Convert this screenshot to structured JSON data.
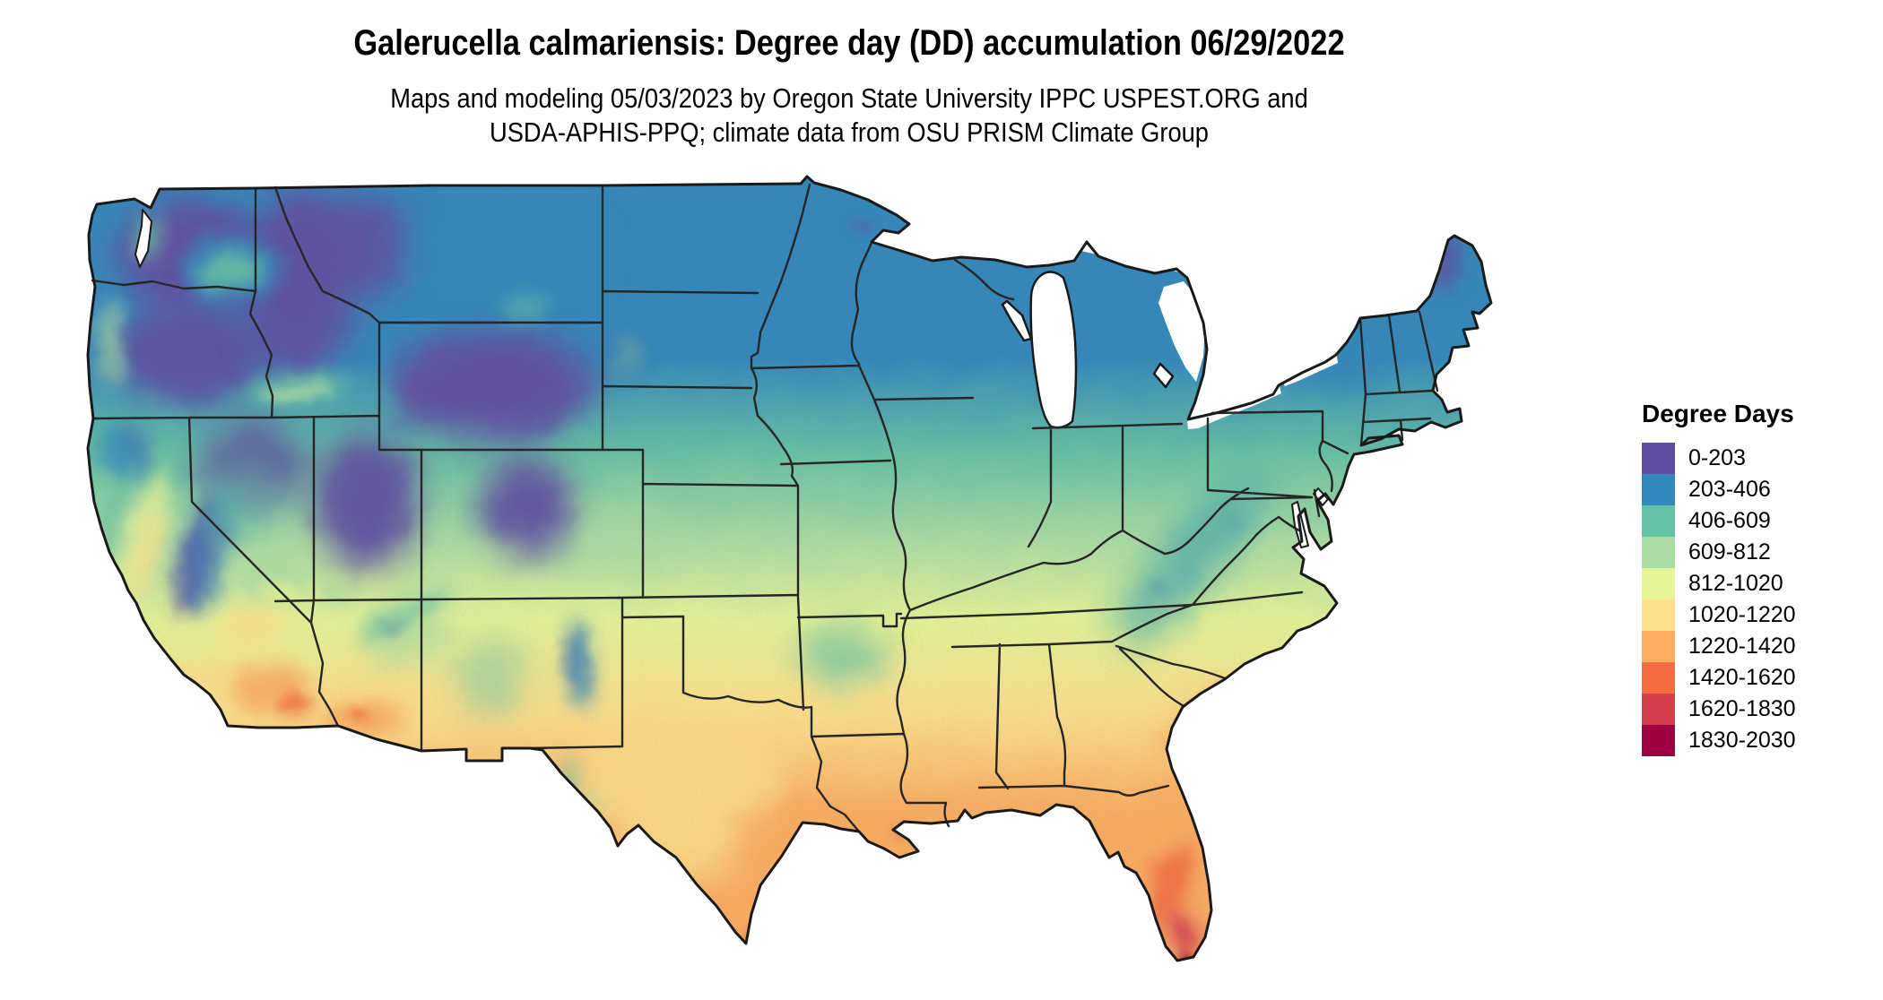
{
  "title": "Galerucella calmariensis: Degree day (DD) accumulation 06/29/2022",
  "subtitle_line1": "Maps and modeling 05/03/2023 by Oregon State University IPPC USPEST.ORG and",
  "subtitle_line2": "USDA-APHIS-PPQ; climate data from OSU PRISM Climate Group",
  "map": {
    "region": "contiguous United States",
    "type": "degree-day accumulation raster map"
  },
  "legend": {
    "title": "Degree Days",
    "items": [
      {
        "range": "0-203",
        "color": "#5e4fa2"
      },
      {
        "range": "203-406",
        "color": "#3288bd"
      },
      {
        "range": "406-609",
        "color": "#66c2a5"
      },
      {
        "range": "609-812",
        "color": "#abdda4"
      },
      {
        "range": "812-1020",
        "color": "#e6f598"
      },
      {
        "range": "1020-1220",
        "color": "#fee08b"
      },
      {
        "range": "1220-1420",
        "color": "#fdae61"
      },
      {
        "range": "1420-1620",
        "color": "#f46d43"
      },
      {
        "range": "1620-1830",
        "color": "#d53e4f"
      },
      {
        "range": "1830-2030",
        "color": "#9e0142"
      }
    ]
  }
}
